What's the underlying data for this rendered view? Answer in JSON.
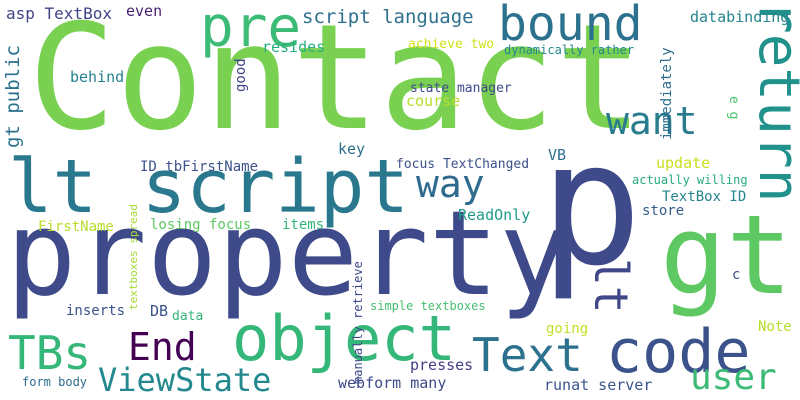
{
  "background": "#ffffff",
  "words": [
    {
      "text": "Contact",
      "color": "#7ad151"
    },
    {
      "text": "p",
      "color": "#3e4a89"
    },
    {
      "text": "property",
      "color": "#3e4a89"
    },
    {
      "text": "gt",
      "color": "#5ec962"
    },
    {
      "text": "lt script",
      "color": "#2a788e"
    },
    {
      "text": "object",
      "color": "#35b779"
    },
    {
      "text": "code",
      "color": "#3b528b"
    },
    {
      "text": "pre",
      "color": "#3bbb75"
    },
    {
      "text": "bound",
      "color": "#2c728e"
    },
    {
      "text": "return",
      "color": "#21918c"
    },
    {
      "text": "Text",
      "color": "#2c728e"
    },
    {
      "text": "TBs",
      "color": "#35b779"
    },
    {
      "text": "want",
      "color": "#287c8e"
    },
    {
      "text": "way",
      "color": "#2f6b8e"
    },
    {
      "text": "lt",
      "color": "#3f4788"
    },
    {
      "text": "End",
      "color": "#440154"
    },
    {
      "text": "ViewState",
      "color": "#23898e"
    },
    {
      "text": "user",
      "color": "#3bbb75"
    },
    {
      "text": "script language",
      "color": "#2d708e"
    },
    {
      "text": "gt public",
      "color": "#2c728e"
    },
    {
      "text": "asp TextBox",
      "color": "#404387"
    },
    {
      "text": "even",
      "color": "#482173"
    },
    {
      "text": "databinding",
      "color": "#25848e"
    },
    {
      "text": "resides",
      "color": "#29af7f"
    },
    {
      "text": "behind",
      "color": "#26818e"
    },
    {
      "text": "good",
      "color": "#404387"
    },
    {
      "text": "achieve two",
      "color": "#d2e21b"
    },
    {
      "text": "dynamically rather",
      "color": "#24878e"
    },
    {
      "text": "immediately",
      "color": "#2e6f8e"
    },
    {
      "text": "e g",
      "color": "#4ac16d"
    },
    {
      "text": "state manager",
      "color": "#3e4989"
    },
    {
      "text": "course",
      "color": "#b5de2b"
    },
    {
      "text": "key",
      "color": "#2d708e"
    },
    {
      "text": "ID tbFirstName",
      "color": "#3b528b"
    },
    {
      "text": "focus TextChanged",
      "color": "#3b518b"
    },
    {
      "text": "VB",
      "color": "#2d708e"
    },
    {
      "text": "update",
      "color": "#c8e020"
    },
    {
      "text": "actually willing",
      "color": "#25ab82"
    },
    {
      "text": "TextBox ID",
      "color": "#25848e"
    },
    {
      "text": "store",
      "color": "#365c8d"
    },
    {
      "text": "FirstName",
      "color": "#b8de29"
    },
    {
      "text": "losing focus",
      "color": "#5ec962"
    },
    {
      "text": "items",
      "color": "#32b67a"
    },
    {
      "text": "ReadOnly",
      "color": "#1e9b8a"
    },
    {
      "text": "c",
      "color": "#3b518b"
    },
    {
      "text": "textboxes spread",
      "color": "#a5db36"
    },
    {
      "text": "manually retrieve",
      "color": "#3e4a89"
    },
    {
      "text": "inserts",
      "color": "#3b528b"
    },
    {
      "text": "DB",
      "color": "#3a548c"
    },
    {
      "text": "data",
      "color": "#32b67a"
    },
    {
      "text": "simple textboxes",
      "color": "#44bf70"
    },
    {
      "text": "going",
      "color": "#c2df23"
    },
    {
      "text": "Note",
      "color": "#b5de2b"
    },
    {
      "text": "presses",
      "color": "#433e85"
    },
    {
      "text": "webform many",
      "color": "#3e4a89"
    },
    {
      "text": "runat server",
      "color": "#39568c"
    },
    {
      "text": "form body",
      "color": "#2f6c8e"
    }
  ]
}
